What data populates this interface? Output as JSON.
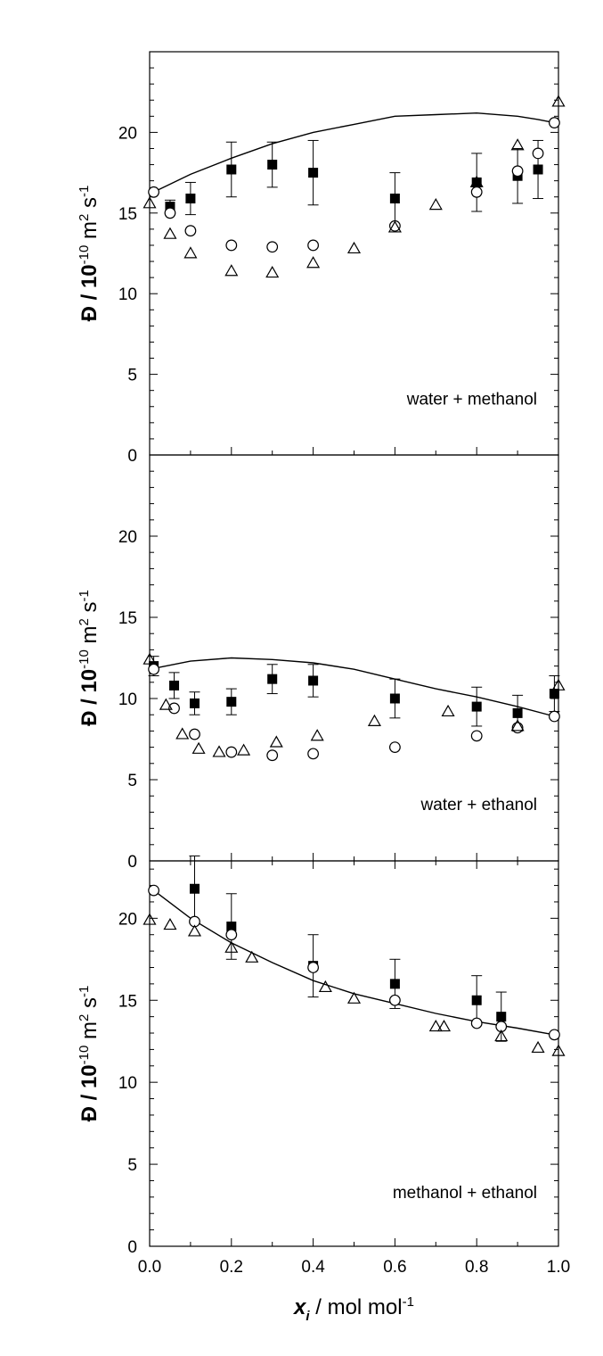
{
  "chart_data": [
    {
      "type": "scatter",
      "panel": "top",
      "annotation": "water + methanol",
      "ylabel": {
        "main": "Đ / 10",
        "exp1": "-10",
        "unit": " m",
        "exp2": "2",
        "unit2": " s",
        "exp3": "-1"
      },
      "xlim": [
        0,
        1
      ],
      "ylim": [
        0,
        25
      ],
      "yticks": [
        0,
        5,
        10,
        15,
        20
      ],
      "series": [
        {
          "marker": "filled-square",
          "x": [
            0.05,
            0.1,
            0.2,
            0.3,
            0.4,
            0.6,
            0.8,
            0.9,
            0.95
          ],
          "y": [
            15.4,
            15.9,
            17.7,
            18.0,
            17.5,
            15.9,
            16.9,
            17.3,
            17.7
          ],
          "err": [
            0.4,
            1.0,
            1.7,
            1.4,
            2.0,
            1.6,
            1.8,
            1.7,
            1.8
          ]
        },
        {
          "marker": "open-circle",
          "x": [
            0.01,
            0.05,
            0.1,
            0.2,
            0.3,
            0.4,
            0.6,
            0.8,
            0.9,
            0.95,
            0.99
          ],
          "y": [
            16.3,
            15.0,
            13.9,
            13.0,
            12.9,
            13.0,
            14.2,
            16.3,
            17.6,
            18.7,
            20.6
          ]
        },
        {
          "marker": "open-triangle",
          "x": [
            0.0,
            0.05,
            0.1,
            0.2,
            0.3,
            0.4,
            0.5,
            0.6,
            0.7,
            0.8,
            0.9,
            1.0
          ],
          "y": [
            15.6,
            13.7,
            12.5,
            11.4,
            11.3,
            11.9,
            12.8,
            14.1,
            15.5,
            16.9,
            19.2,
            21.9
          ]
        },
        {
          "marker": "line",
          "x": [
            0.01,
            0.1,
            0.2,
            0.3,
            0.4,
            0.5,
            0.6,
            0.7,
            0.8,
            0.9,
            0.95,
            0.99
          ],
          "y": [
            16.3,
            17.4,
            18.4,
            19.3,
            20.0,
            20.5,
            21.0,
            21.1,
            21.2,
            21.0,
            20.8,
            20.6
          ]
        }
      ]
    },
    {
      "type": "scatter",
      "panel": "middle",
      "annotation": "water + ethanol",
      "ylabel": {
        "main": "Đ / 10",
        "exp1": "-10",
        "unit": " m",
        "exp2": "2",
        "unit2": " s",
        "exp3": "-1"
      },
      "xlim": [
        0,
        1
      ],
      "ylim": [
        0,
        25
      ],
      "yticks": [
        0,
        5,
        10,
        15,
        20
      ],
      "series": [
        {
          "marker": "filled-square",
          "x": [
            0.01,
            0.06,
            0.11,
            0.2,
            0.3,
            0.4,
            0.6,
            0.8,
            0.9,
            0.99
          ],
          "y": [
            12.0,
            10.8,
            9.7,
            9.8,
            11.2,
            11.1,
            10.0,
            9.5,
            9.1,
            10.3
          ],
          "err": [
            0.6,
            0.8,
            0.7,
            0.8,
            0.9,
            1.0,
            1.2,
            1.2,
            1.1,
            1.1
          ]
        },
        {
          "marker": "open-circle",
          "x": [
            0.01,
            0.06,
            0.11,
            0.2,
            0.3,
            0.4,
            0.6,
            0.8,
            0.9,
            0.99
          ],
          "y": [
            11.8,
            9.4,
            7.8,
            6.7,
            6.5,
            6.6,
            7.0,
            7.7,
            8.2,
            8.9
          ]
        },
        {
          "marker": "open-triangle",
          "x": [
            0.0,
            0.04,
            0.08,
            0.12,
            0.17,
            0.23,
            0.31,
            0.41,
            0.55,
            0.73,
            0.9,
            1.0
          ],
          "y": [
            12.4,
            9.6,
            7.8,
            6.9,
            6.7,
            6.8,
            7.3,
            7.7,
            8.6,
            9.2,
            8.3,
            10.8
          ]
        },
        {
          "marker": "line",
          "x": [
            0.0,
            0.1,
            0.2,
            0.3,
            0.4,
            0.5,
            0.6,
            0.7,
            0.8,
            0.9,
            0.99
          ],
          "y": [
            11.8,
            12.3,
            12.5,
            12.4,
            12.2,
            11.8,
            11.2,
            10.6,
            10.1,
            9.5,
            8.9
          ]
        }
      ]
    },
    {
      "type": "scatter",
      "panel": "bottom",
      "annotation": "methanol + ethanol",
      "ylabel": {
        "main": "Đ / 10",
        "exp1": "-10",
        "unit": " m",
        "exp2": "2",
        "unit2": " s",
        "exp3": "-1"
      },
      "xlabel": {
        "var": "x",
        "sub": "i",
        "unit": " / mol mol",
        "exp": "-1"
      },
      "xlim": [
        0,
        1
      ],
      "xticks": [
        0.0,
        0.2,
        0.4,
        0.6,
        0.8,
        1.0
      ],
      "xtick_labels": [
        "0.0",
        "0.2",
        "0.4",
        "0.6",
        "0.8",
        "1.0"
      ],
      "ylim": [
        0,
        23.5
      ],
      "yticks": [
        0,
        5,
        10,
        15,
        20
      ],
      "series": [
        {
          "marker": "filled-square",
          "x": [
            0.11,
            0.2,
            0.4,
            0.6,
            0.8,
            0.86
          ],
          "y": [
            21.8,
            19.5,
            17.1,
            16.0,
            15.0,
            14.0
          ],
          "err": [
            2.0,
            2.0,
            1.9,
            1.5,
            1.5,
            1.5
          ]
        },
        {
          "marker": "open-circle",
          "x": [
            0.01,
            0.11,
            0.2,
            0.4,
            0.6,
            0.8,
            0.86,
            0.99
          ],
          "y": [
            21.7,
            19.8,
            19.0,
            17.0,
            15.0,
            13.6,
            13.4,
            12.9
          ]
        },
        {
          "marker": "open-triangle",
          "x": [
            0.0,
            0.05,
            0.11,
            0.2,
            0.25,
            0.43,
            0.5,
            0.7,
            0.72,
            0.86,
            0.95,
            1.0
          ],
          "y": [
            19.9,
            19.6,
            19.2,
            18.2,
            17.6,
            15.8,
            15.1,
            13.4,
            13.4,
            12.8,
            12.1,
            11.9
          ]
        },
        {
          "marker": "line",
          "x": [
            0.01,
            0.1,
            0.2,
            0.3,
            0.4,
            0.5,
            0.6,
            0.7,
            0.8,
            0.9,
            0.99
          ],
          "y": [
            21.7,
            20.0,
            18.5,
            17.3,
            16.2,
            15.4,
            14.8,
            14.2,
            13.7,
            13.3,
            12.9
          ]
        }
      ]
    }
  ]
}
